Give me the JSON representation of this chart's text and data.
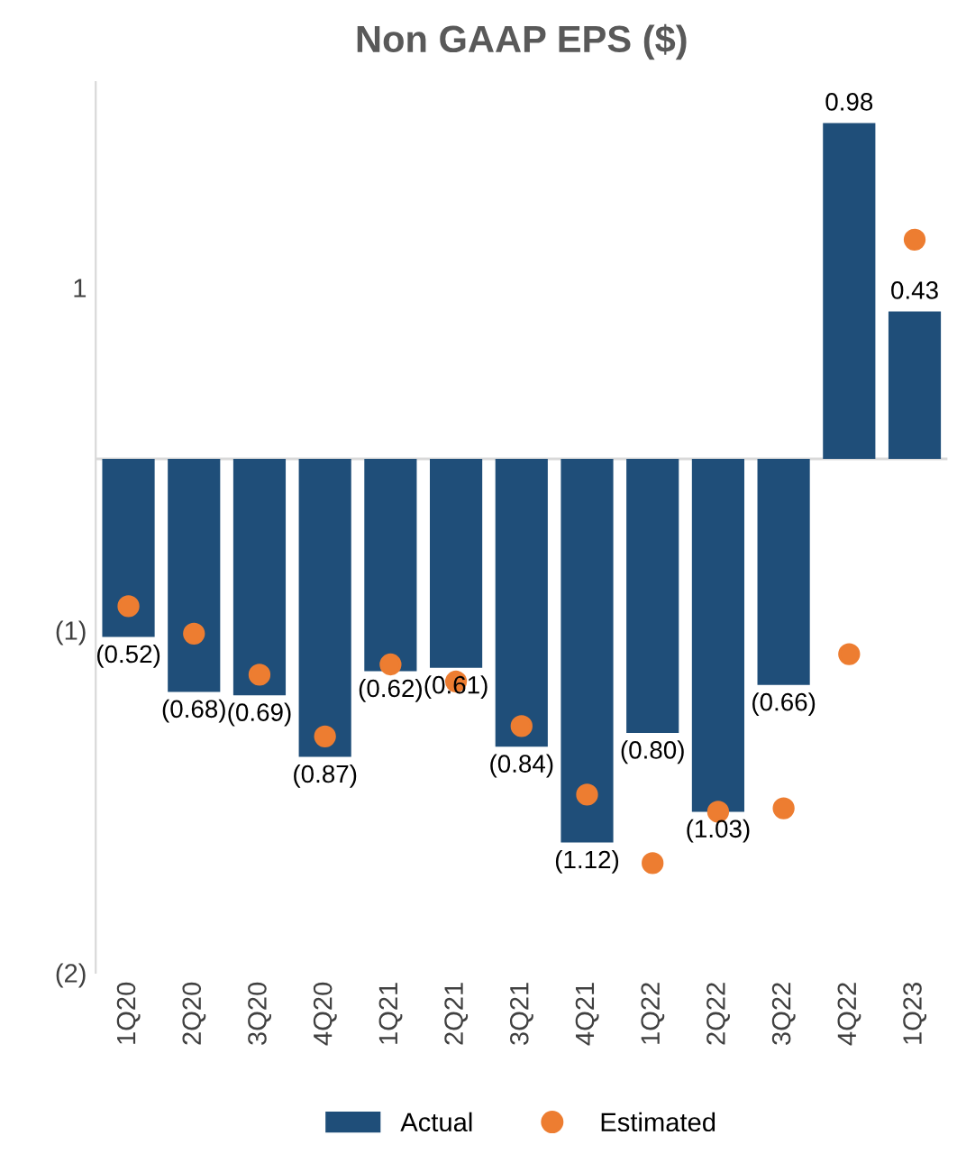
{
  "chart_data": {
    "type": "bar",
    "title": "Non GAAP EPS ($)",
    "categories": [
      "1Q20",
      "2Q20",
      "3Q20",
      "4Q20",
      "1Q21",
      "2Q21",
      "3Q21",
      "4Q21",
      "1Q22",
      "2Q22",
      "3Q22",
      "4Q22",
      "1Q23"
    ],
    "series": [
      {
        "name": "Actual",
        "color": "#1f4e79",
        "values": [
          -0.52,
          -0.68,
          -0.69,
          -0.87,
          -0.62,
          -0.61,
          -0.84,
          -1.12,
          -0.8,
          -1.03,
          -0.66,
          0.98,
          0.43
        ],
        "value_labels": [
          "(0.52)",
          "(0.68)",
          "(0.69)",
          "(0.87)",
          "(0.62)",
          "(0.61)",
          "(0.84)",
          "(1.12)",
          "(0.80)",
          "(1.03)",
          "(0.66)",
          "0.98",
          "0.43"
        ]
      },
      {
        "name": "Estimated",
        "type": "scatter",
        "color": "#ed7d31",
        "marker": "circle",
        "values": [
          -0.43,
          -0.51,
          -0.63,
          -0.81,
          -0.6,
          -0.65,
          -0.78,
          -0.98,
          -1.18,
          -1.03,
          -1.02,
          -0.57,
          0.64
        ]
      }
    ],
    "ylim": [
      -1.5,
      1.1
    ],
    "yticks": [
      {
        "value": -1.5,
        "label": "(2)"
      },
      {
        "value": -0.5,
        "label": "(1)"
      },
      {
        "value": 0.5,
        "label": "1"
      }
    ],
    "grid": false,
    "legend": "bottom"
  }
}
